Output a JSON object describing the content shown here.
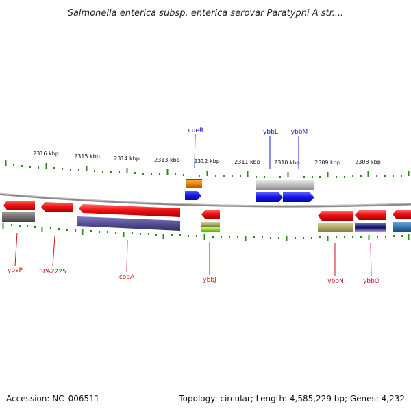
{
  "title": "Salmonella enterica subsp. enterica serovar Paratyphi A str....",
  "footer": {
    "accession": "Accession: NC_006511",
    "topology": "Topology: circular; Length: 4,585,229 bp; Genes: 4,232"
  },
  "scale_labels": [
    "2316 kbp",
    "2315 kbp",
    "2314 kbp",
    "2313 kbp",
    "2312 kbp",
    "2311 kbp",
    "2310 kbp",
    "2309 kbp",
    "2308 kbp"
  ],
  "top_gene_labels": [
    "cueR",
    "ybbL",
    "ybbM"
  ],
  "bottom_gene_labels": [
    "ybaP",
    "SPA2225",
    "copA",
    "ybbJ",
    "ybbN",
    "ybbO"
  ],
  "colors": {
    "backbone": "#8a8a8a",
    "tick_green": "#2a8a1a",
    "cds_red": "#ee1111",
    "cds_blue": "#1515ee",
    "orange": "#f08a10",
    "gray_feature": "#bdbdbd",
    "dark_gray": "#6e6e6e",
    "slate_purple": "#565094",
    "olive": "#b2aa6a",
    "lime": "#a8e040",
    "steel_blue": "#3a7ab2",
    "label_blue": "#1a1acc",
    "label_red": "#cc1111"
  }
}
